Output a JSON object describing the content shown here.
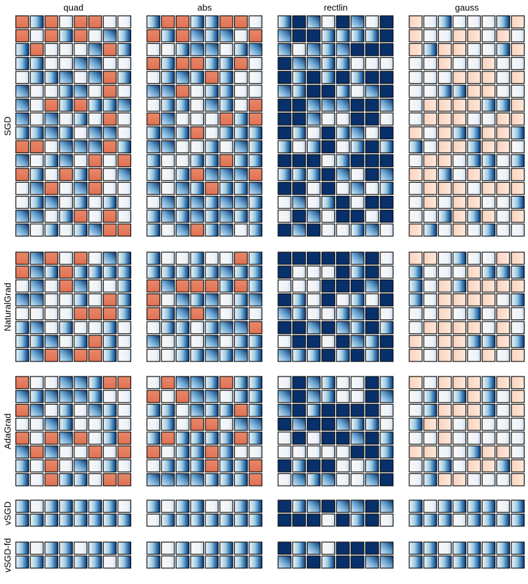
{
  "columns": [
    "quad",
    "abs",
    "rectlin",
    "gauss"
  ],
  "rows": [
    "SGD",
    "NaturalGrad",
    "AdaGrad",
    "vSGD",
    "vSGD-fd"
  ]
}
